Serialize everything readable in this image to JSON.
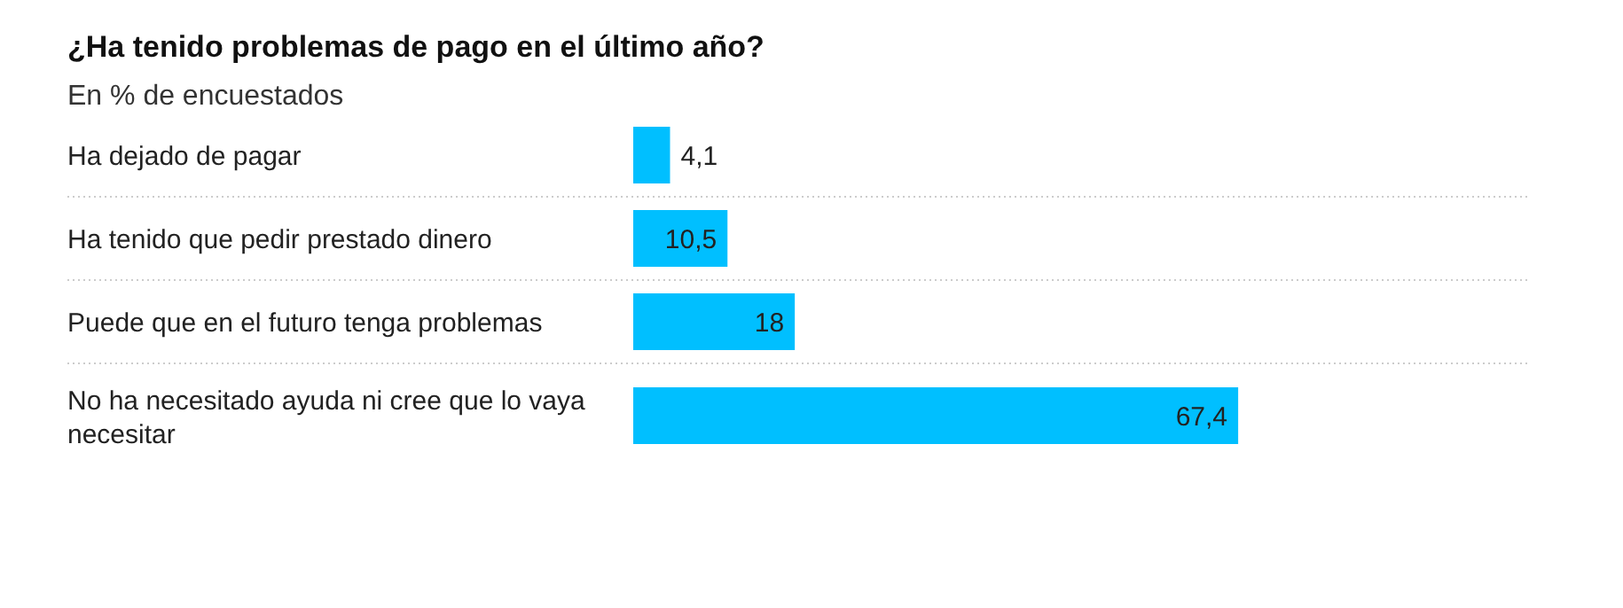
{
  "chart_data": {
    "type": "bar",
    "orientation": "horizontal",
    "title": "¿Ha tenido problemas de pago en el último año?",
    "subtitle": "En % de encuestados",
    "categories": [
      "Ha dejado de pagar",
      "Ha tenido que pedir prestado dinero",
      "Puede que en el futuro tenga problemas",
      "No ha necesitado ayuda ni cree que lo vaya necesitar"
    ],
    "values": [
      4.1,
      10.5,
      18,
      67.4
    ],
    "value_labels": [
      "4,1",
      "10,5",
      "18",
      "67,4"
    ],
    "color": "#00bfff",
    "xlim": [
      0,
      100
    ],
    "tick_labels": false
  }
}
